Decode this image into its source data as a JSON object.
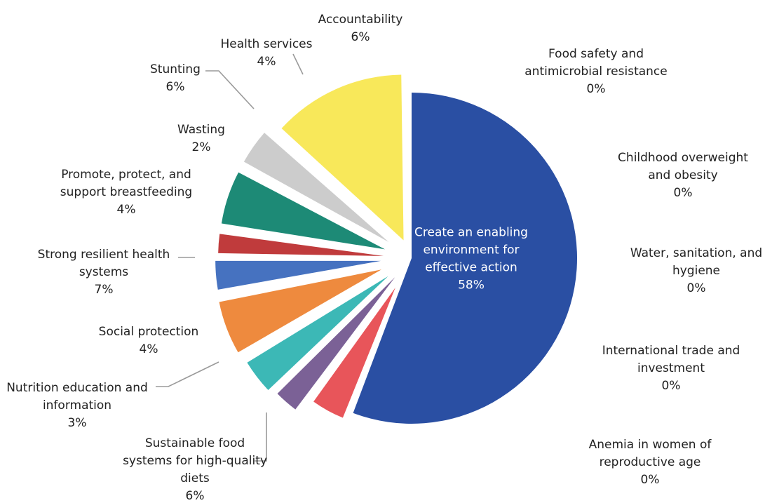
{
  "chart_data": {
    "type": "pie",
    "title": "",
    "slices": [
      {
        "label": "Create an enabling environment for effective action",
        "value": 58,
        "value_label": "58%",
        "color": "#2a4fa3"
      },
      {
        "label": "Sustainable food systems for high-quality diets",
        "value": 6,
        "value_label": "6%",
        "color": "#e8555a"
      },
      {
        "label": "Nutrition education and information",
        "value": 3,
        "value_label": "3%",
        "color": "#7b6196"
      },
      {
        "label": "Social protection",
        "value": 4,
        "value_label": "4%",
        "color": "#3cb8b6"
      },
      {
        "label": "Strong resilient health systems",
        "value": 7,
        "value_label": "7%",
        "color": "#ee8a3e"
      },
      {
        "label": "Promote, protect, and support breastfeeding",
        "value": 4,
        "value_label": "4%",
        "color": "#4672c0"
      },
      {
        "label": "Wasting",
        "value": 2,
        "value_label": "2%",
        "color": "#c03b3c"
      },
      {
        "label": "Stunting",
        "value": 6,
        "value_label": "6%",
        "color": "#1d8a76"
      },
      {
        "label": "Health services",
        "value": 4,
        "value_label": "4%",
        "color": "#cccccc"
      },
      {
        "label": "Accountability",
        "value": 6,
        "value_label": "6%",
        "color": "#f8e85a"
      },
      {
        "label": "Food safety and antimicrobial resistance",
        "value": 0,
        "value_label": "0%",
        "color": ""
      },
      {
        "label": "Childhood overweight and obesity",
        "value": 0,
        "value_label": "0%",
        "color": ""
      },
      {
        "label": "Water, sanitation, and hygiene",
        "value": 0,
        "value_label": "0%",
        "color": ""
      },
      {
        "label": "International trade and investment",
        "value": 0,
        "value_label": "0%",
        "color": ""
      },
      {
        "label": "Anemia in women of reproductive age",
        "value": 0,
        "value_label": "0%",
        "color": ""
      }
    ]
  }
}
